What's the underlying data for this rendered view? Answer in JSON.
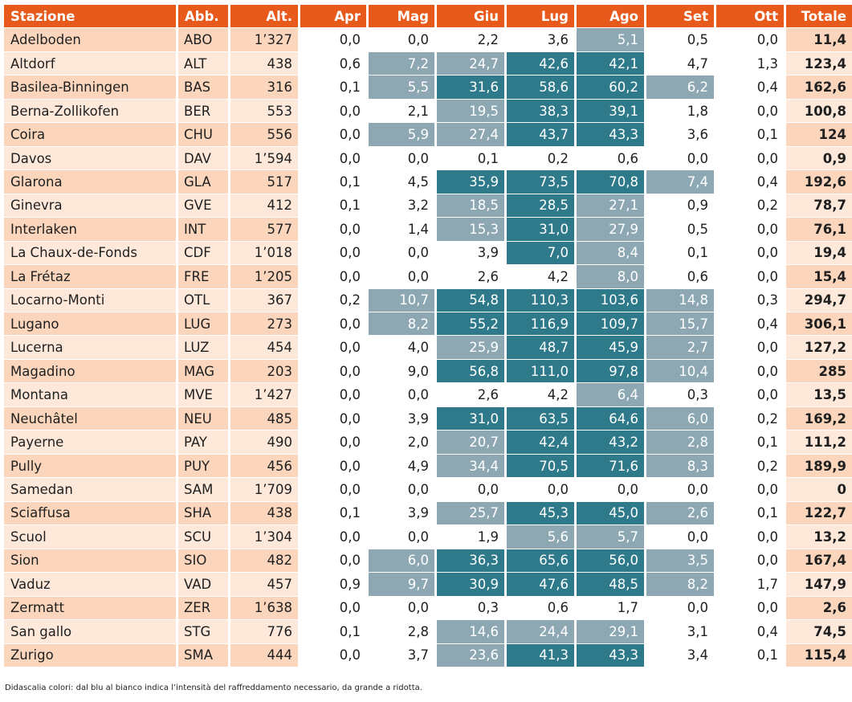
{
  "colors": {
    "header_bg": "#e85a1c",
    "row_even": "#fbd6bd",
    "row_odd": "#fde8da",
    "month_white": "#ffffff",
    "month_light": "#8da8b3",
    "month_dark": "#2f7a8a"
  },
  "headers": [
    "Stazione",
    "Abb.",
    "Alt.",
    "Apr",
    "Mag",
    "Giu",
    "Lug",
    "Ago",
    "Set",
    "Ott",
    "Totale"
  ],
  "rows": [
    {
      "name": "Adelboden",
      "abb": "ABO",
      "alt": "1’327",
      "months": [
        "0,0",
        "0,0",
        "2,2",
        "3,6",
        "5,1",
        "0,5",
        "0,0"
      ],
      "shade": [
        "w",
        "w",
        "w",
        "w",
        "l",
        "w",
        "w"
      ],
      "total": "11,4"
    },
    {
      "name": "Altdorf",
      "abb": "ALT",
      "alt": "438",
      "months": [
        "0,6",
        "7,2",
        "24,7",
        "42,6",
        "42,1",
        "4,7",
        "1,3"
      ],
      "shade": [
        "w",
        "l",
        "l",
        "d",
        "d",
        "w",
        "w"
      ],
      "total": "123,4"
    },
    {
      "name": "Basilea-Binningen",
      "abb": "BAS",
      "alt": "316",
      "months": [
        "0,1",
        "5,5",
        "31,6",
        "58,6",
        "60,2",
        "6,2",
        "0,4"
      ],
      "shade": [
        "w",
        "l",
        "d",
        "d",
        "d",
        "l",
        "w"
      ],
      "total": "162,6"
    },
    {
      "name": "Berna-Zollikofen",
      "abb": "BER",
      "alt": "553",
      "months": [
        "0,0",
        "2,1",
        "19,5",
        "38,3",
        "39,1",
        "1,8",
        "0,0"
      ],
      "shade": [
        "w",
        "w",
        "l",
        "d",
        "d",
        "w",
        "w"
      ],
      "total": "100,8"
    },
    {
      "name": "Coira",
      "abb": "CHU",
      "alt": "556",
      "months": [
        "0,0",
        "5,9",
        "27,4",
        "43,7",
        "43,3",
        "3,6",
        "0,1"
      ],
      "shade": [
        "w",
        "l",
        "l",
        "d",
        "d",
        "w",
        "w"
      ],
      "total": "124"
    },
    {
      "name": "Davos",
      "abb": "DAV",
      "alt": "1’594",
      "months": [
        "0,0",
        "0,0",
        "0,1",
        "0,2",
        "0,6",
        "0,0",
        "0,0"
      ],
      "shade": [
        "w",
        "w",
        "w",
        "w",
        "w",
        "w",
        "w"
      ],
      "total": "0,9"
    },
    {
      "name": "Glarona",
      "abb": "GLA",
      "alt": "517",
      "months": [
        "0,1",
        "4,5",
        "35,9",
        "73,5",
        "70,8",
        "7,4",
        "0,4"
      ],
      "shade": [
        "w",
        "w",
        "d",
        "d",
        "d",
        "l",
        "w"
      ],
      "total": "192,6"
    },
    {
      "name": "Ginevra",
      "abb": "GVE",
      "alt": "412",
      "months": [
        "0,1",
        "3,2",
        "18,5",
        "28,5",
        "27,1",
        "0,9",
        "0,2"
      ],
      "shade": [
        "w",
        "w",
        "l",
        "d",
        "l",
        "w",
        "w"
      ],
      "total": "78,7"
    },
    {
      "name": "Interlaken",
      "abb": "INT",
      "alt": "577",
      "months": [
        "0,0",
        "1,4",
        "15,3",
        "31,0",
        "27,9",
        "0,5",
        "0,0"
      ],
      "shade": [
        "w",
        "w",
        "l",
        "d",
        "l",
        "w",
        "w"
      ],
      "total": "76,1"
    },
    {
      "name": "La Chaux-de-Fonds",
      "abb": "CDF",
      "alt": "1’018",
      "months": [
        "0,0",
        "0,0",
        "3,9",
        "7,0",
        "8,4",
        "0,1",
        "0,0"
      ],
      "shade": [
        "w",
        "w",
        "w",
        "d",
        "l",
        "w",
        "w"
      ],
      "total": "19,4"
    },
    {
      "name": "La Frétaz",
      "abb": "FRE",
      "alt": "1’205",
      "months": [
        "0,0",
        "0,0",
        "2,6",
        "4,2",
        "8,0",
        "0,6",
        "0,0"
      ],
      "shade": [
        "w",
        "w",
        "w",
        "w",
        "l",
        "w",
        "w"
      ],
      "total": "15,4"
    },
    {
      "name": "Locarno-Monti",
      "abb": "OTL",
      "alt": "367",
      "months": [
        "0,2",
        "10,7",
        "54,8",
        "110,3",
        "103,6",
        "14,8",
        "0,3"
      ],
      "shade": [
        "w",
        "l",
        "d",
        "d",
        "d",
        "l",
        "w"
      ],
      "total": "294,7"
    },
    {
      "name": "Lugano",
      "abb": "LUG",
      "alt": "273",
      "months": [
        "0,0",
        "8,2",
        "55,2",
        "116,9",
        "109,7",
        "15,7",
        "0,4"
      ],
      "shade": [
        "w",
        "l",
        "d",
        "d",
        "d",
        "l",
        "w"
      ],
      "total": "306,1"
    },
    {
      "name": "Lucerna",
      "abb": "LUZ",
      "alt": "454",
      "months": [
        "0,0",
        "4,0",
        "25,9",
        "48,7",
        "45,9",
        "2,7",
        "0,0"
      ],
      "shade": [
        "w",
        "w",
        "l",
        "d",
        "d",
        "l",
        "w"
      ],
      "total": "127,2"
    },
    {
      "name": "Magadino",
      "abb": "MAG",
      "alt": "203",
      "months": [
        "0,0",
        "9,0",
        "56,8",
        "111,0",
        "97,8",
        "10,4",
        "0,0"
      ],
      "shade": [
        "w",
        "w",
        "d",
        "d",
        "d",
        "l",
        "w"
      ],
      "total": "285"
    },
    {
      "name": "Montana",
      "abb": "MVE",
      "alt": "1’427",
      "months": [
        "0,0",
        "0,0",
        "2,6",
        "4,2",
        "6,4",
        "0,3",
        "0,0"
      ],
      "shade": [
        "w",
        "w",
        "w",
        "w",
        "l",
        "w",
        "w"
      ],
      "total": "13,5"
    },
    {
      "name": "Neuchâtel",
      "abb": "NEU",
      "alt": "485",
      "months": [
        "0,0",
        "3,9",
        "31,0",
        "63,5",
        "64,6",
        "6,0",
        "0,2"
      ],
      "shade": [
        "w",
        "w",
        "d",
        "d",
        "d",
        "l",
        "w"
      ],
      "total": "169,2"
    },
    {
      "name": "Payerne",
      "abb": "PAY",
      "alt": "490",
      "months": [
        "0,0",
        "2,0",
        "20,7",
        "42,4",
        "43,2",
        "2,8",
        "0,1"
      ],
      "shade": [
        "w",
        "w",
        "l",
        "d",
        "d",
        "l",
        "w"
      ],
      "total": "111,2"
    },
    {
      "name": "Pully",
      "abb": "PUY",
      "alt": "456",
      "months": [
        "0,0",
        "4,9",
        "34,4",
        "70,5",
        "71,6",
        "8,3",
        "0,2"
      ],
      "shade": [
        "w",
        "w",
        "l",
        "d",
        "d",
        "l",
        "w"
      ],
      "total": "189,9"
    },
    {
      "name": "Samedan",
      "abb": "SAM",
      "alt": "1’709",
      "months": [
        "0,0",
        "0,0",
        "0,0",
        "0,0",
        "0,0",
        "0,0",
        "0,0"
      ],
      "shade": [
        "w",
        "w",
        "w",
        "w",
        "w",
        "w",
        "w"
      ],
      "total": "0"
    },
    {
      "name": "Sciaffusa",
      "abb": "SHA",
      "alt": "438",
      "months": [
        "0,1",
        "3,9",
        "25,7",
        "45,3",
        "45,0",
        "2,6",
        "0,1"
      ],
      "shade": [
        "w",
        "w",
        "l",
        "d",
        "d",
        "l",
        "w"
      ],
      "total": "122,7"
    },
    {
      "name": "Scuol",
      "abb": "SCU",
      "alt": "1’304",
      "months": [
        "0,0",
        "0,0",
        "1,9",
        "5,6",
        "5,7",
        "0,0",
        "0,0"
      ],
      "shade": [
        "w",
        "w",
        "w",
        "l",
        "l",
        "w",
        "w"
      ],
      "total": "13,2"
    },
    {
      "name": "Sion",
      "abb": "SIO",
      "alt": "482",
      "months": [
        "0,0",
        "6,0",
        "36,3",
        "65,6",
        "56,0",
        "3,5",
        "0,0"
      ],
      "shade": [
        "w",
        "l",
        "d",
        "d",
        "d",
        "l",
        "w"
      ],
      "total": "167,4"
    },
    {
      "name": "Vaduz",
      "abb": "VAD",
      "alt": "457",
      "months": [
        "0,9",
        "9,7",
        "30,9",
        "47,6",
        "48,5",
        "8,2",
        "1,7"
      ],
      "shade": [
        "w",
        "l",
        "d",
        "d",
        "d",
        "l",
        "w"
      ],
      "total": "147,9"
    },
    {
      "name": "Zermatt",
      "abb": "ZER",
      "alt": "1’638",
      "months": [
        "0,0",
        "0,0",
        "0,3",
        "0,6",
        "1,7",
        "0,0",
        "0,0"
      ],
      "shade": [
        "w",
        "w",
        "w",
        "w",
        "w",
        "w",
        "w"
      ],
      "total": "2,6"
    },
    {
      "name": "San gallo",
      "abb": "STG",
      "alt": "776",
      "months": [
        "0,1",
        "2,8",
        "14,6",
        "24,4",
        "29,1",
        "3,1",
        "0,4"
      ],
      "shade": [
        "w",
        "w",
        "l",
        "l",
        "l",
        "w",
        "w"
      ],
      "total": "74,5"
    },
    {
      "name": "Zurigo",
      "abb": "SMA",
      "alt": "444",
      "months": [
        "0,0",
        "3,7",
        "23,6",
        "41,3",
        "43,3",
        "3,4",
        "0,1"
      ],
      "shade": [
        "w",
        "w",
        "l",
        "d",
        "d",
        "w",
        "w"
      ],
      "total": "115,4"
    }
  ],
  "caption": "Didascalia colori: dal blu al bianco indica l’intensità del raffreddamento necessario, da grande a ridotta."
}
